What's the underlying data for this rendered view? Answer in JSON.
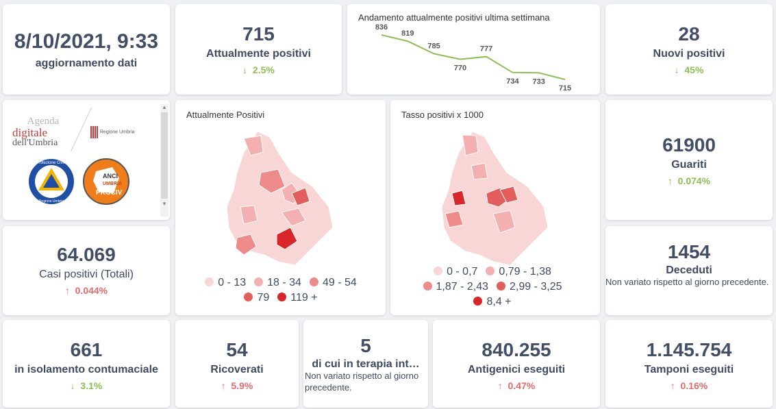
{
  "update": {
    "datetime": "8/10/2021, 9:33",
    "label": "aggiornamento dati"
  },
  "positivi": {
    "value": "715",
    "label": "Attualmente positivi",
    "change": "2.5%",
    "arrow": "↓"
  },
  "trend": {
    "title": "Andamento attualmente positivi ultima settimana",
    "values": [
      836,
      819,
      785,
      770,
      777,
      734,
      733,
      715
    ],
    "labels": [
      "836",
      "819",
      "785",
      "770",
      "777",
      "734",
      "733",
      "715"
    ],
    "color": "#8cc051"
  },
  "nuovi": {
    "value": "28",
    "label": "Nuovi positivi",
    "change": "45%",
    "arrow": "↓"
  },
  "logos": {
    "agenda_line1": "Agenda",
    "agenda_line2": "digitale",
    "agenda_line3": "dell'Umbria",
    "regione": "Regione Umbria",
    "pc_top": "Protezione Civile",
    "pc_bottom": "Regione Umbria",
    "anci1": "ANCI",
    "anci2": "UMBRIA",
    "anci3": "PROCIV"
  },
  "map1": {
    "title": "Attualmente Positivi",
    "legend": [
      {
        "label": "0 - 13",
        "color": "#f8d6d6"
      },
      {
        "label": "18 - 34",
        "color": "#f4b0b0"
      },
      {
        "label": "49 - 54",
        "color": "#ee8a8a"
      },
      {
        "label": "79",
        "color": "#e45d5d"
      },
      {
        "label": "119 +",
        "color": "#d8262b"
      }
    ]
  },
  "map2": {
    "title": "Tasso positivi x 1000",
    "legend": [
      {
        "label": "0 - 0,7",
        "color": "#f8d6d6"
      },
      {
        "label": "0,79 - 1,38",
        "color": "#f4b0b0"
      },
      {
        "label": "1,87 - 2,43",
        "color": "#ee8a8a"
      },
      {
        "label": "2,99 - 3,25",
        "color": "#e45d5d"
      },
      {
        "label": "8,4 +",
        "color": "#d8262b"
      }
    ]
  },
  "guariti": {
    "value": "61900",
    "label": "Guariti",
    "change": "0.074%",
    "arrow": "↑"
  },
  "casi": {
    "value": "64.069",
    "label": "Casi positivi (Totali)",
    "change": "0.044%",
    "arrow": "↑"
  },
  "deceduti": {
    "value": "1454",
    "label": "Deceduti",
    "note": "Non variato rispetto al giorno precedente."
  },
  "isolamento": {
    "value": "661",
    "label": "in isolamento contumaciale",
    "change": "3.1%",
    "arrow": "↓"
  },
  "ricoverati": {
    "value": "54",
    "label": "Ricoverati",
    "change": "5.9%",
    "arrow": "↑"
  },
  "terapia": {
    "value": "5",
    "label": "di cui in terapia int…",
    "note": "Non variato rispetto al giorno precedente."
  },
  "antigenici": {
    "value": "840.255",
    "label": "Antigenici eseguiti",
    "change": "0.47%",
    "arrow": "↑"
  },
  "tamponi": {
    "value": "1.145.754",
    "label": "Tamponi eseguiti",
    "change": "0.16%",
    "arrow": "↑"
  }
}
